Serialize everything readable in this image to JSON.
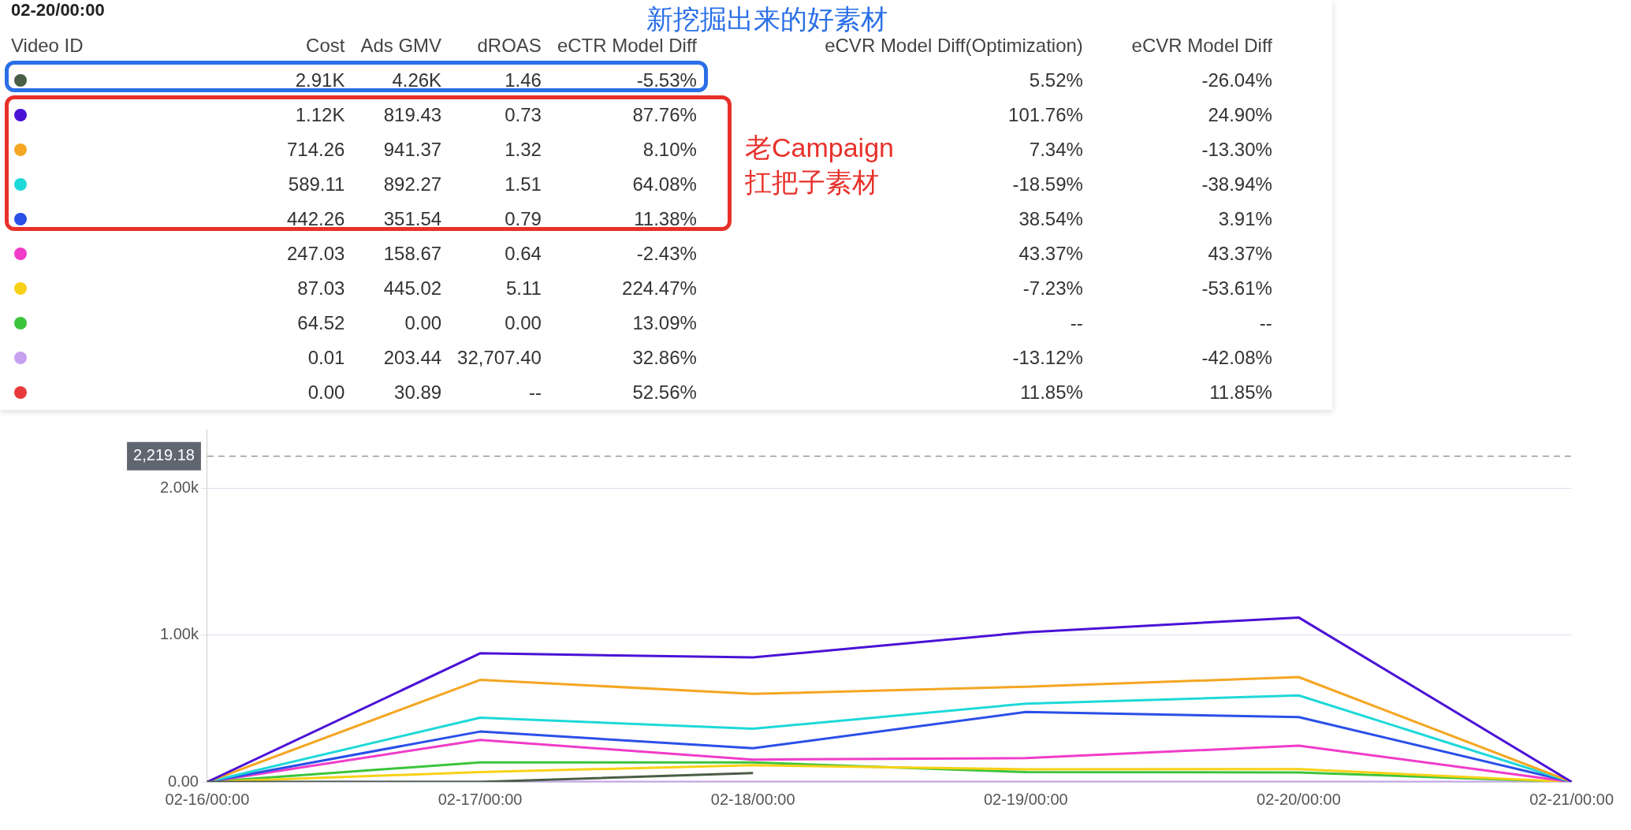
{
  "chart_data": [
    {
      "type": "other",
      "title": "02-20/00:00",
      "categories": [
        "Video ID",
        "Cost",
        "Ads GMV",
        "dROAS",
        "eCTR Model Diff",
        "eCVR Model Diff(Optimization)",
        "eCVR Model Diff"
      ],
      "annotations": [
        "2.91K",
        "4.26K",
        "1.46",
        "-5.53%",
        "5.52%",
        "-26.04%",
        "1.12K",
        "819.43",
        "0.73",
        "87.76%",
        "101.76%",
        "24.90%",
        "714.26",
        "941.37",
        "1.32",
        "8.10%",
        "7.34%",
        "-13.30%",
        "589.11",
        "892.27",
        "1.51",
        "64.08%",
        "-18.59%",
        "-38.94%",
        "442.26",
        "351.54",
        "0.79",
        "11.38%",
        "38.54%",
        "3.91%",
        "247.03",
        "158.67",
        "0.64",
        "-2.43%",
        "43.37%",
        "43.37%",
        "87.03",
        "445.02",
        "5.11",
        "224.47%",
        "-7.23%",
        "-53.61%",
        "64.52",
        "0.00",
        "0.00",
        "13.09%",
        "--",
        "--",
        "0.01",
        "203.44",
        "32,707.40",
        "32.86%",
        "-13.12%",
        "-42.08%",
        "0.00",
        "30.89",
        "--",
        "52.56%",
        "11.85%",
        "11.85%",
        "新挖掘出来的好素材",
        "老Campaign\n扛把子素材"
      ]
    },
    {
      "type": "line",
      "categories": [
        "02-16/00:00",
        "02-17/00:00",
        "02-18/00:00",
        "02-19/00:00",
        "02-20/00:00",
        "02-21/00:00"
      ],
      "ylim": [
        0,
        2400
      ],
      "yticks": [
        {
          "value": 0,
          "label": "0.00"
        },
        {
          "value": 1000,
          "label": "1.00k"
        },
        {
          "value": 2000,
          "label": "2.00k"
        }
      ],
      "grid": "y",
      "legend": false,
      "ref_lines": [
        {
          "axis": "y",
          "value": 2219.18,
          "label": "2,219.18",
          "line_style": "dashed"
        }
      ],
      "series": [
        {
          "color": "#4a5e46",
          "values": [
            0,
            0,
            60,
            null,
            null,
            null
          ]
        },
        {
          "color": "#4b12d6",
          "values": [
            0,
            876,
            848,
            1019,
            1120,
            0
          ]
        },
        {
          "color": "#f5a623",
          "values": [
            0,
            695,
            600,
            648,
            714,
            0
          ]
        },
        {
          "color": "#1fd8d8",
          "values": [
            0,
            438,
            362,
            533,
            589,
            0
          ]
        },
        {
          "color": "#2a4fe8",
          "values": [
            0,
            343,
            229,
            476,
            442,
            0
          ]
        },
        {
          "color": "#f03cc8",
          "values": [
            0,
            286,
            152,
            162,
            247,
            0
          ]
        },
        {
          "color": "#f7d117",
          "values": [
            0,
            67,
            114,
            86,
            87,
            0
          ]
        },
        {
          "color": "#3cc43c",
          "values": [
            0,
            133,
            133,
            67,
            65,
            0
          ]
        },
        {
          "color": "#c8a0f0",
          "values": [
            0,
            0,
            0,
            0,
            0,
            0
          ]
        },
        {
          "color": "#e83a3a",
          "values": [
            null,
            null,
            null,
            null,
            null,
            null
          ]
        }
      ]
    }
  ]
}
